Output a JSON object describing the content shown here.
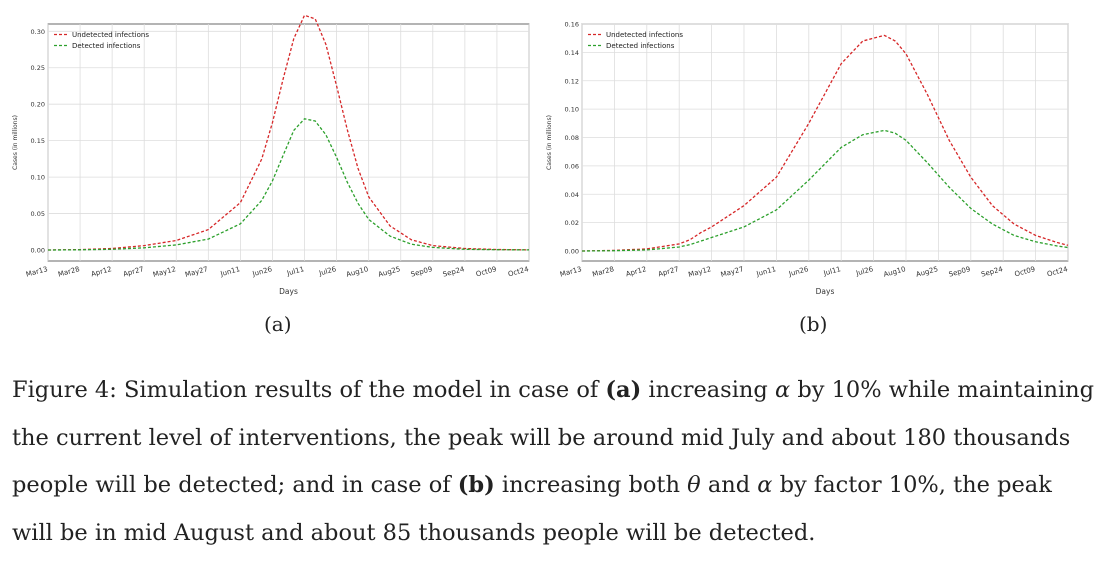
{
  "chart_data": [
    {
      "type": "line",
      "panel": "a",
      "xlabel": "Days",
      "ylabel": "Cases (in millions)",
      "ylim": [
        0,
        0.31
      ],
      "yticks": [
        "0.00",
        "0.05",
        "0.10",
        "0.15",
        "0.20",
        "0.25",
        "0.30"
      ],
      "ytick_values": [
        0,
        0.05,
        0.1,
        0.15,
        0.2,
        0.25,
        0.3
      ],
      "xticks": [
        "Mar13",
        "Mar28",
        "Apr12",
        "Apr27",
        "May12",
        "May27",
        "Jun11",
        "Jun26",
        "Jul11",
        "Jul26",
        "Aug10",
        "Aug25",
        "Sep09",
        "Sep24",
        "Oct09",
        "Oct24"
      ],
      "xlim": [
        0,
        225
      ],
      "legend": [
        "Undetected infections",
        "Detected infections"
      ],
      "legend_position": "top-left",
      "grid": true,
      "series": [
        {
          "name": "Undetected infections",
          "color": "#d62728",
          "x": [
            0,
            15,
            30,
            45,
            60,
            75,
            90,
            100,
            105,
            110,
            115,
            120,
            125,
            130,
            135,
            140,
            145,
            150,
            160,
            170,
            180,
            195,
            210,
            225
          ],
          "values": [
            0.0,
            0.0005,
            0.002,
            0.006,
            0.013,
            0.028,
            0.065,
            0.125,
            0.175,
            0.235,
            0.29,
            0.322,
            0.317,
            0.282,
            0.225,
            0.165,
            0.112,
            0.073,
            0.033,
            0.014,
            0.006,
            0.002,
            0.0007,
            0.0002
          ]
        },
        {
          "name": "Detected infections",
          "color": "#2ca02c",
          "x": [
            0,
            15,
            30,
            45,
            60,
            75,
            90,
            100,
            105,
            110,
            115,
            120,
            125,
            130,
            135,
            140,
            145,
            150,
            160,
            170,
            180,
            195,
            210,
            225
          ],
          "values": [
            0.0,
            0.0003,
            0.001,
            0.003,
            0.007,
            0.015,
            0.036,
            0.068,
            0.095,
            0.13,
            0.164,
            0.18,
            0.177,
            0.158,
            0.127,
            0.093,
            0.064,
            0.042,
            0.019,
            0.008,
            0.0035,
            0.001,
            0.0004,
            0.0001
          ]
        }
      ]
    },
    {
      "type": "line",
      "panel": "b",
      "xlabel": "Days",
      "ylabel": "Cases (in millions)",
      "ylim": [
        0,
        0.16
      ],
      "yticks": [
        "0.00",
        "0.02",
        "0.04",
        "0.06",
        "0.08",
        "0.10",
        "0.12",
        "0.14",
        "0.16"
      ],
      "ytick_values": [
        0,
        0.02,
        0.04,
        0.06,
        0.08,
        0.1,
        0.12,
        0.14,
        0.16
      ],
      "xticks": [
        "Mar13",
        "Mar28",
        "Apr12",
        "Apr27",
        "May12",
        "May27",
        "Jun11",
        "Jun26",
        "Jul11",
        "Jul26",
        "Aug10",
        "Aug25",
        "Sep09",
        "Sep24",
        "Oct09",
        "Oct24"
      ],
      "xlim": [
        0,
        225
      ],
      "legend": [
        "Undetected infections",
        "Detected infections"
      ],
      "legend_position": "top-left",
      "grid": true,
      "series": [
        {
          "name": "Undetected infections",
          "color": "#d62728",
          "x": [
            0,
            15,
            30,
            45,
            50,
            55,
            60,
            65,
            75,
            90,
            105,
            120,
            130,
            140,
            145,
            150,
            160,
            170,
            180,
            190,
            200,
            210,
            220,
            225
          ],
          "values": [
            0.0,
            0.0004,
            0.0015,
            0.005,
            0.008,
            0.013,
            0.017,
            0.022,
            0.032,
            0.052,
            0.09,
            0.132,
            0.148,
            0.152,
            0.148,
            0.139,
            0.11,
            0.078,
            0.052,
            0.032,
            0.019,
            0.011,
            0.006,
            0.004
          ]
        },
        {
          "name": "Detected infections",
          "color": "#2ca02c",
          "x": [
            0,
            15,
            30,
            45,
            50,
            55,
            60,
            65,
            75,
            90,
            105,
            120,
            130,
            140,
            145,
            150,
            160,
            170,
            180,
            190,
            200,
            210,
            220,
            225
          ],
          "values": [
            0.0,
            0.0002,
            0.0008,
            0.0028,
            0.0045,
            0.007,
            0.0095,
            0.012,
            0.017,
            0.029,
            0.05,
            0.073,
            0.082,
            0.085,
            0.083,
            0.078,
            0.062,
            0.045,
            0.03,
            0.019,
            0.011,
            0.0065,
            0.0035,
            0.0025
          ]
        }
      ]
    }
  ],
  "subfigures": {
    "a": "(a)",
    "b": "(b)"
  },
  "caption": {
    "line1_part1": "Figure 4: Simulation results of the model in case of ",
    "line1_bold_a": "(a)",
    "line1_part2": " increasing ",
    "alpha": "α",
    "line1_part3": " by 10% while maintaining",
    "line2": "the current level of interventions, the peak will be around mid July and about 180 thousands",
    "line3_part1": "people will be detected; and in case of ",
    "line3_bold_b": "(b)",
    "line3_part2": " increasing both ",
    "theta": "θ",
    "line3_part3": " and ",
    "alpha2": "α",
    "line3_part4": " by factor 10%, the peak",
    "line4": "will be in mid August and about 85 thousands people will be detected."
  }
}
